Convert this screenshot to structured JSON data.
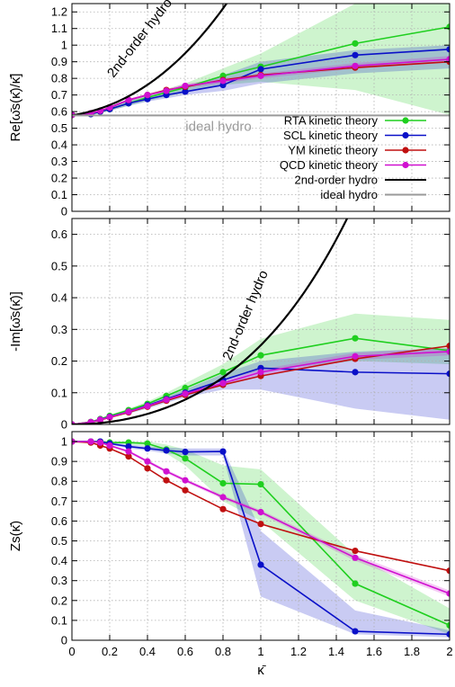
{
  "chart_data": [
    {
      "type": "line",
      "ylabel": "Re[ω̄s(κ̄)/κ̄]",
      "xlim": [
        0,
        2
      ],
      "ylim": [
        0,
        1.25
      ],
      "yticks": [
        0,
        0.1,
        0.2,
        0.3,
        0.4,
        0.5,
        0.6,
        0.7,
        0.8,
        0.9,
        1,
        1.1,
        1.2
      ],
      "grid": true,
      "legend": "inside-lower-right",
      "series": [
        {
          "name": "RTA kinetic theory",
          "color": "#1fcf1f",
          "x": [
            0,
            0.1,
            0.15,
            0.2,
            0.3,
            0.4,
            0.5,
            0.6,
            0.8,
            1.0,
            1.5,
            2.0
          ],
          "y": [
            0.58,
            0.585,
            0.6,
            0.615,
            0.65,
            0.685,
            0.715,
            0.745,
            0.815,
            0.87,
            1.01,
            1.11
          ],
          "band_lo": [
            0.58,
            0.58,
            0.59,
            0.605,
            0.635,
            0.665,
            0.69,
            0.715,
            0.76,
            0.78,
            0.73,
            0.58
          ],
          "band_hi": [
            0.58,
            0.59,
            0.61,
            0.625,
            0.665,
            0.7,
            0.735,
            0.77,
            0.86,
            0.95,
            1.25,
            1.25
          ]
        },
        {
          "name": "SCL kinetic theory",
          "color": "#0a10c8",
          "x": [
            0,
            0.1,
            0.15,
            0.2,
            0.3,
            0.4,
            0.5,
            0.6,
            0.8,
            1.0,
            1.5,
            2.0
          ],
          "y": [
            0.58,
            0.585,
            0.6,
            0.615,
            0.65,
            0.675,
            0.7,
            0.72,
            0.76,
            0.855,
            0.94,
            0.975
          ],
          "band_lo": [
            0.58,
            0.58,
            0.59,
            0.605,
            0.635,
            0.66,
            0.68,
            0.7,
            0.725,
            0.77,
            0.83,
            0.86
          ],
          "band_hi": [
            0.58,
            0.59,
            0.61,
            0.625,
            0.665,
            0.69,
            0.72,
            0.745,
            0.82,
            0.9,
            0.97,
            1.0
          ]
        },
        {
          "name": "YM kinetic theory",
          "color": "#c01010",
          "x": [
            0,
            0.1,
            0.15,
            0.2,
            0.3,
            0.4,
            0.5,
            0.6,
            0.8,
            1.0,
            1.5,
            2.0
          ],
          "y": [
            0.58,
            0.59,
            0.605,
            0.625,
            0.67,
            0.7,
            0.73,
            0.75,
            0.79,
            0.82,
            0.865,
            0.9
          ]
        },
        {
          "name": "QCD kinetic theory",
          "color": "#d010d0",
          "x": [
            0,
            0.1,
            0.15,
            0.2,
            0.3,
            0.4,
            0.5,
            0.6,
            0.8,
            1.0,
            1.5,
            2.0
          ],
          "y": [
            0.58,
            0.59,
            0.605,
            0.625,
            0.67,
            0.7,
            0.725,
            0.755,
            0.785,
            0.815,
            0.875,
            0.915
          ],
          "band_lo": [
            0.58,
            0.588,
            0.6,
            0.618,
            0.662,
            0.69,
            0.714,
            0.742,
            0.77,
            0.8,
            0.858,
            0.895
          ],
          "band_hi": [
            0.58,
            0.592,
            0.61,
            0.632,
            0.678,
            0.71,
            0.736,
            0.768,
            0.8,
            0.83,
            0.892,
            0.935
          ]
        },
        {
          "name": "2nd-order hydro",
          "color": "#000000",
          "type": "curve",
          "annotation": "2nd-order hydro"
        },
        {
          "name": "ideal hydro",
          "color": "#9a9a9a",
          "type": "constant",
          "value": 0.577,
          "annotation": "ideal hydro"
        }
      ]
    },
    {
      "type": "line",
      "ylabel": "-Im[ω̄s(κ̄)]",
      "xlim": [
        0,
        2
      ],
      "ylim": [
        0,
        0.65
      ],
      "yticks": [
        0,
        0.1,
        0.2,
        0.3,
        0.4,
        0.5,
        0.6
      ],
      "grid": true,
      "series": [
        {
          "name": "RTA kinetic theory",
          "color": "#1fcf1f",
          "x": [
            0,
            0.1,
            0.15,
            0.2,
            0.3,
            0.4,
            0.5,
            0.6,
            0.8,
            1.0,
            1.5,
            2.0
          ],
          "y": [
            0,
            0.008,
            0.017,
            0.027,
            0.045,
            0.065,
            0.09,
            0.115,
            0.165,
            0.218,
            0.272,
            0.233
          ],
          "band_lo": [
            0,
            0.006,
            0.014,
            0.022,
            0.038,
            0.055,
            0.075,
            0.095,
            0.14,
            0.17,
            0.2,
            0.19
          ],
          "band_hi": [
            0,
            0.01,
            0.02,
            0.03,
            0.05,
            0.072,
            0.1,
            0.13,
            0.19,
            0.27,
            0.35,
            0.33
          ]
        },
        {
          "name": "SCL kinetic theory",
          "color": "#0a10c8",
          "x": [
            0,
            0.1,
            0.15,
            0.2,
            0.3,
            0.4,
            0.5,
            0.6,
            0.8,
            1.0,
            1.5,
            2.0
          ],
          "y": [
            0,
            0.007,
            0.015,
            0.024,
            0.04,
            0.06,
            0.08,
            0.1,
            0.14,
            0.178,
            0.165,
            0.16
          ],
          "band_lo": [
            0,
            0.005,
            0.012,
            0.02,
            0.034,
            0.05,
            0.068,
            0.085,
            0.11,
            0.11,
            0.05,
            0.015
          ],
          "band_hi": [
            0,
            0.009,
            0.018,
            0.028,
            0.046,
            0.066,
            0.088,
            0.11,
            0.16,
            0.2,
            0.23,
            0.24
          ]
        },
        {
          "name": "YM kinetic theory",
          "color": "#c01010",
          "x": [
            0,
            0.1,
            0.15,
            0.2,
            0.3,
            0.4,
            0.5,
            0.6,
            0.8,
            1.0,
            1.5,
            2.0
          ],
          "y": [
            0,
            0.007,
            0.014,
            0.022,
            0.038,
            0.056,
            0.075,
            0.093,
            0.125,
            0.153,
            0.207,
            0.248
          ]
        },
        {
          "name": "QCD kinetic theory",
          "color": "#d010d0",
          "x": [
            0,
            0.1,
            0.15,
            0.2,
            0.3,
            0.4,
            0.5,
            0.6,
            0.8,
            1.0,
            1.5,
            2.0
          ],
          "y": [
            0,
            0.007,
            0.015,
            0.023,
            0.04,
            0.058,
            0.078,
            0.097,
            0.13,
            0.165,
            0.215,
            0.23
          ],
          "band_lo": [
            0,
            0.006,
            0.013,
            0.021,
            0.037,
            0.054,
            0.073,
            0.091,
            0.123,
            0.156,
            0.204,
            0.218
          ],
          "band_hi": [
            0,
            0.008,
            0.017,
            0.025,
            0.043,
            0.062,
            0.083,
            0.103,
            0.137,
            0.174,
            0.226,
            0.242
          ]
        },
        {
          "name": "2nd-order hydro",
          "color": "#000000",
          "type": "curve",
          "annotation": "2nd-order hydro"
        }
      ]
    },
    {
      "type": "line",
      "ylabel": "Zs(κ̄)",
      "xlabel": "κ̄",
      "xlim": [
        0,
        2
      ],
      "ylim": [
        0,
        1.05
      ],
      "xticks": [
        0,
        0.2,
        0.4,
        0.6,
        0.8,
        1,
        1.2,
        1.4,
        1.6,
        1.8,
        2
      ],
      "yticks": [
        0,
        0.1,
        0.2,
        0.3,
        0.4,
        0.5,
        0.6,
        0.7,
        0.8,
        0.9,
        1
      ],
      "grid": true,
      "series": [
        {
          "name": "RTA kinetic theory",
          "color": "#1fcf1f",
          "x": [
            0,
            0.1,
            0.15,
            0.2,
            0.3,
            0.4,
            0.5,
            0.6,
            0.8,
            1.0,
            1.5,
            2.0
          ],
          "y": [
            1,
            1,
            1,
            0.995,
            0.995,
            0.99,
            0.96,
            0.915,
            0.79,
            0.785,
            0.285,
            0.075
          ],
          "band_lo": [
            1,
            1,
            1,
            0.99,
            0.985,
            0.975,
            0.94,
            0.88,
            0.7,
            0.6,
            0.2,
            0.03
          ],
          "band_hi": [
            1,
            1,
            1,
            1,
            1,
            1,
            0.985,
            0.96,
            0.88,
            0.86,
            0.43,
            0.16
          ]
        },
        {
          "name": "SCL kinetic theory",
          "color": "#0a10c8",
          "x": [
            0,
            0.1,
            0.15,
            0.2,
            0.3,
            0.4,
            0.5,
            0.6,
            0.8,
            1.0,
            1.5,
            2.0
          ],
          "y": [
            1,
            1,
            1,
            0.99,
            0.975,
            0.965,
            0.955,
            0.948,
            0.95,
            0.38,
            0.045,
            0.03
          ],
          "band_lo": [
            1,
            1,
            1,
            0.985,
            0.965,
            0.955,
            0.94,
            0.93,
            0.93,
            0.22,
            0.03,
            0.015
          ],
          "band_hi": [
            1,
            1,
            1,
            0.995,
            0.985,
            0.975,
            0.97,
            0.965,
            0.965,
            0.55,
            0.15,
            0.05
          ]
        },
        {
          "name": "YM kinetic theory",
          "color": "#c01010",
          "x": [
            0,
            0.1,
            0.15,
            0.2,
            0.3,
            0.4,
            0.5,
            0.6,
            0.8,
            1.0,
            1.5,
            2.0
          ],
          "y": [
            1,
            0.995,
            0.98,
            0.965,
            0.925,
            0.865,
            0.805,
            0.755,
            0.66,
            0.585,
            0.45,
            0.35
          ]
        },
        {
          "name": "QCD kinetic theory",
          "color": "#d010d0",
          "x": [
            0,
            0.1,
            0.15,
            0.2,
            0.3,
            0.4,
            0.5,
            0.6,
            0.8,
            1.0,
            1.5,
            2.0
          ],
          "y": [
            1,
            1,
            0.995,
            0.98,
            0.95,
            0.9,
            0.85,
            0.805,
            0.72,
            0.645,
            0.415,
            0.235
          ],
          "band_lo": [
            1,
            0.995,
            0.99,
            0.975,
            0.943,
            0.892,
            0.841,
            0.796,
            0.71,
            0.635,
            0.4,
            0.22
          ],
          "band_hi": [
            1,
            1,
            1,
            0.985,
            0.957,
            0.908,
            0.859,
            0.814,
            0.73,
            0.655,
            0.43,
            0.25
          ]
        }
      ]
    }
  ]
}
